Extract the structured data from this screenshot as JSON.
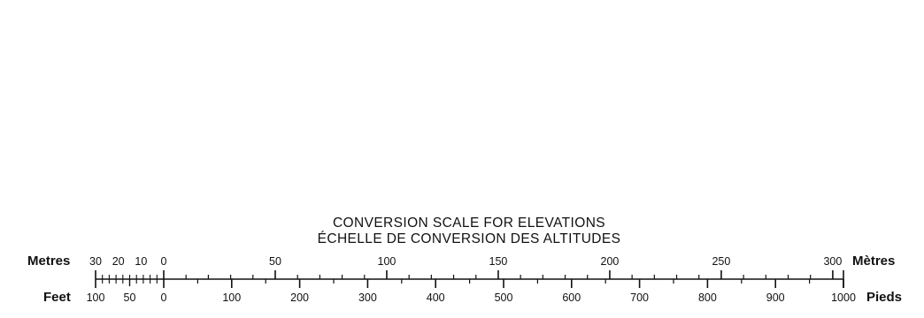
{
  "title": {
    "line1": "CONVERSION SCALE FOR ELEVATIONS",
    "line2": "ÉCHELLE DE CONVERSION DES ALTITUDES"
  },
  "metres_scale": {
    "left_label": "Metres",
    "right_label": "Mètres",
    "positive_labels": [
      0,
      50,
      100,
      150,
      200,
      250,
      300
    ],
    "negative_labels": [
      30,
      20,
      10,
      0
    ],
    "major_tick_step": 50,
    "minor_tick_step": 10,
    "extension_tick_step": 3,
    "extension_range": 30,
    "max": 300
  },
  "feet_scale": {
    "left_label": "Feet",
    "right_label": "Pieds",
    "positive_labels": [
      0,
      100,
      200,
      300,
      400,
      500,
      600,
      700,
      800,
      900,
      1000
    ],
    "negative_labels": [
      100,
      50,
      0
    ],
    "major_tick_step": 100,
    "minor_tick_step": 50,
    "extension_tick_step": 10,
    "extension_range": 100,
    "max": 1000
  },
  "colors": {
    "ink": "#111111",
    "background": "#ffffff"
  }
}
